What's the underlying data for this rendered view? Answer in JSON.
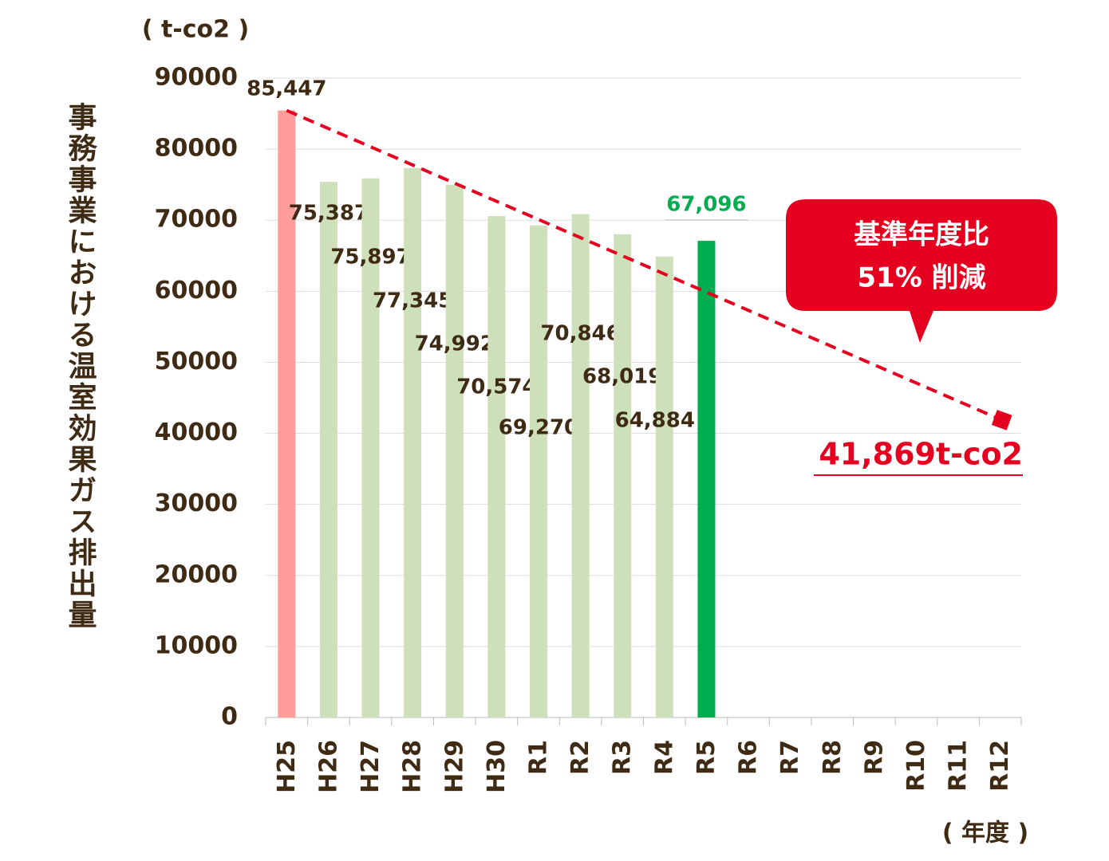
{
  "chart_data": {
    "type": "bar",
    "y_label": "事務事業における温室効果ガス排出量",
    "y_unit": "( t-co2 )",
    "x_unit": "( 年度 )",
    "categories": [
      "H25",
      "H26",
      "H27",
      "H28",
      "H29",
      "H30",
      "R1",
      "R2",
      "R3",
      "R4",
      "R5",
      "R6",
      "R7",
      "R8",
      "R9",
      "R10",
      "R11",
      "R12"
    ],
    "values": [
      85447,
      75387,
      75897,
      77345,
      74992,
      70574,
      69270,
      70846,
      68019,
      64884,
      67096,
      null,
      null,
      null,
      null,
      null,
      null,
      null
    ],
    "value_labels": [
      "85,447",
      "75,387",
      "75,897",
      "77,345",
      "74,992",
      "70,574",
      "69,270",
      "70,846",
      "68,019",
      "64,884",
      "67,096",
      null,
      null,
      null,
      null,
      null,
      null,
      null
    ],
    "colors": [
      "#ff9c9c",
      "#cde0b9",
      "#cde0b9",
      "#cde0b9",
      "#cde0b9",
      "#cde0b9",
      "#cde0b9",
      "#cde0b9",
      "#cde0b9",
      "#cde0b9",
      "#00ad4f",
      null,
      null,
      null,
      null,
      null,
      null,
      null
    ],
    "target": {
      "value": 41869,
      "label": "41,869t-co2",
      "color": "#e60020"
    },
    "annotation": [
      "基準年度比",
      "51% 削減"
    ],
    "ylim": [
      0,
      90000
    ],
    "yticks": [
      0,
      10000,
      20000,
      30000,
      40000,
      50000,
      60000,
      70000,
      80000,
      90000
    ],
    "grid": true
  }
}
